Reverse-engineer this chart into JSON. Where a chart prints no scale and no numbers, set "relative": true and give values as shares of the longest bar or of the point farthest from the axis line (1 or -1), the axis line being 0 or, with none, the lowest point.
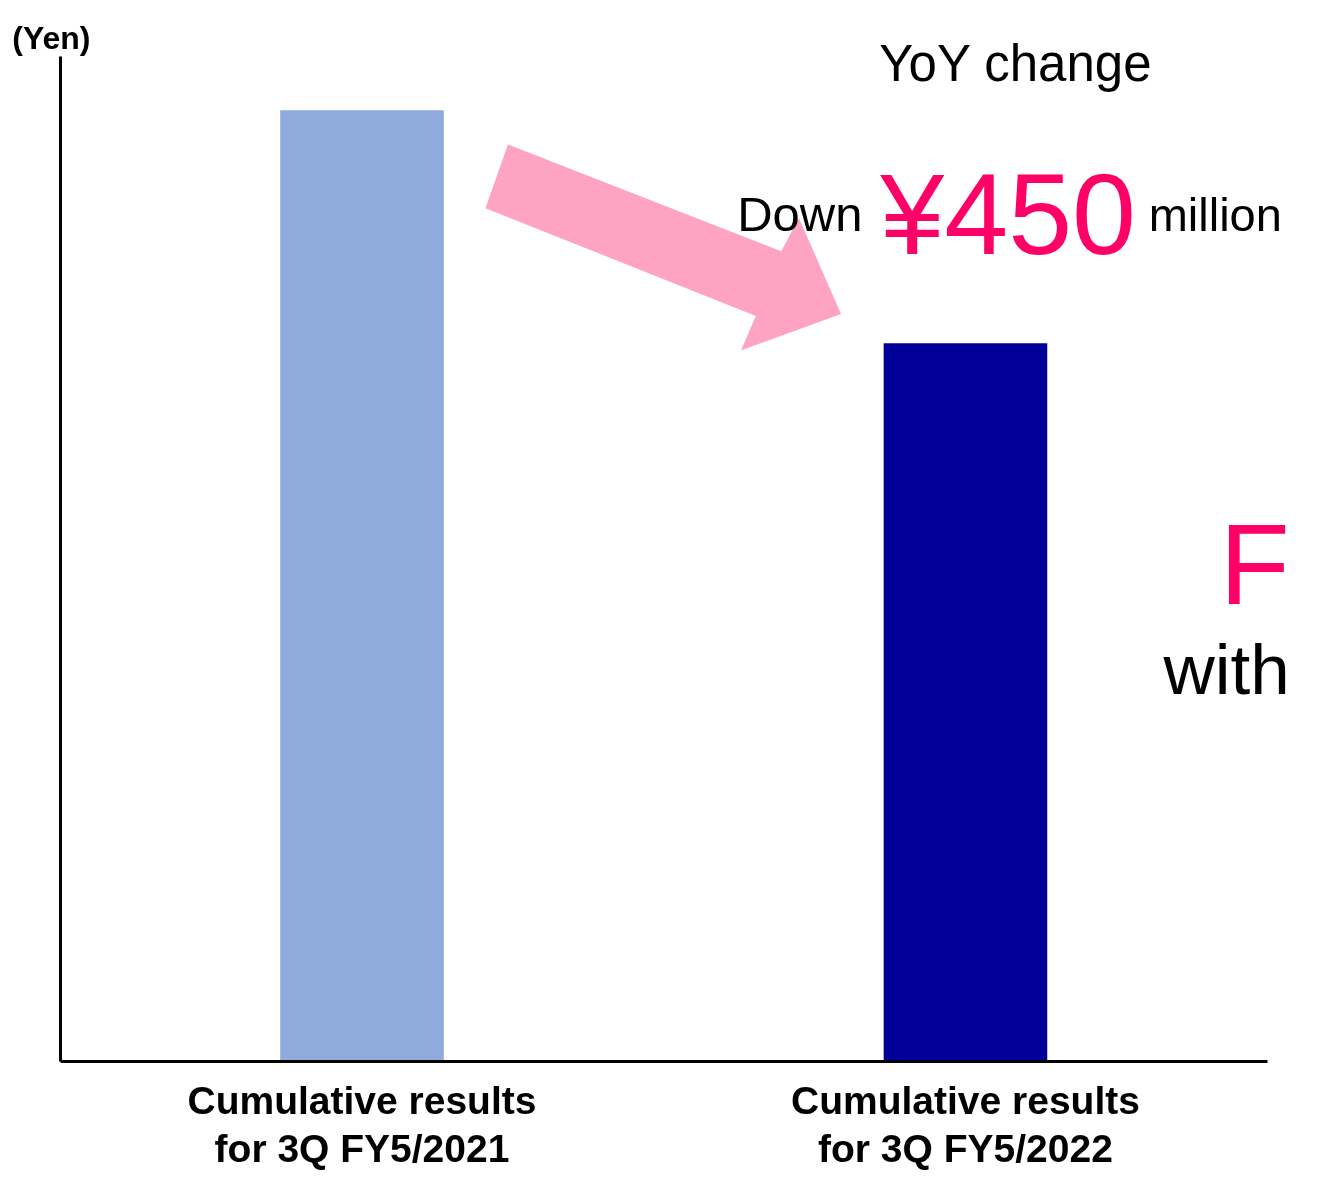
{
  "chart_data": {
    "type": "bar",
    "ylabel": "(Yen)",
    "relative": true,
    "categories": [
      "Cumulative results\nfor 3Q FY5/2021",
      "Cumulative results\nfor 3Q FY5/2022"
    ],
    "values": [
      1,
      0.755
    ],
    "colors": [
      "#8faadc",
      "#000099"
    ],
    "annotations": [
      "YoY change",
      "Down",
      "¥450",
      "million",
      "F",
      "with"
    ]
  }
}
